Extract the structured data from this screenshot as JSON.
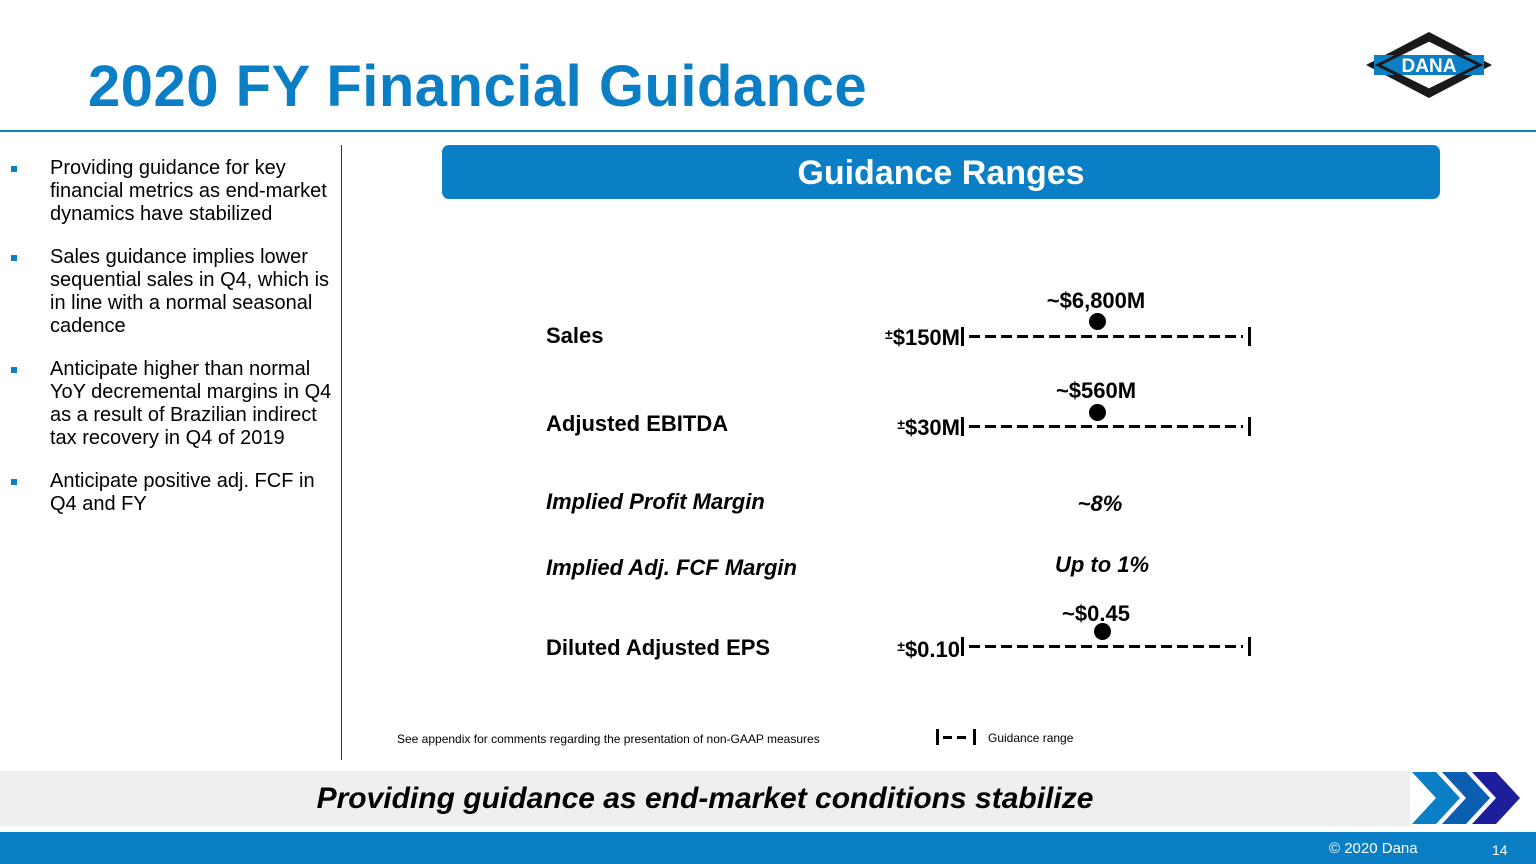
{
  "header": {
    "title": "2020 FY Financial Guidance",
    "logo_text": "DANA"
  },
  "bullets": [
    "Providing guidance for key financial metrics as end-market dynamics have stabilized",
    "Sales guidance implies lower sequential sales in Q4, which is in line with a normal seasonal cadence",
    "Anticipate higher than normal YoY decremental margins in Q4 as a result of Brazilian indirect tax recovery in Q4 of 2019",
    "Anticipate positive adj. FCF in Q4 and FY"
  ],
  "guidance": {
    "banner": "Guidance Ranges",
    "rows": [
      {
        "label": "Sales",
        "midpoint": "~$6,800M",
        "range_sign": "±",
        "range": "$150M"
      },
      {
        "label": "Adjusted EBITDA",
        "midpoint": "~$560M",
        "range_sign": "±",
        "range": "$30M"
      },
      {
        "label": "Implied Profit Margin",
        "value": "~8%"
      },
      {
        "label": "Implied Adj. FCF Margin",
        "value": "Up to 1%"
      },
      {
        "label": "Diluted Adjusted EPS",
        "midpoint": "~$0.45",
        "range_sign": "±",
        "range": "$0.10"
      }
    ],
    "footnote": "See appendix for comments regarding the presentation of non-GAAP measures",
    "legend_label": "Guidance range"
  },
  "tagline": "Providing guidance as end-market conditions stabilize",
  "footer": {
    "copyright": "© 2020 Dana",
    "page_number": "14"
  },
  "colors": {
    "brand_blue": "#0b7fc6",
    "dark_navy": "#1d1f7a",
    "tagline_bg": "#efefef"
  }
}
